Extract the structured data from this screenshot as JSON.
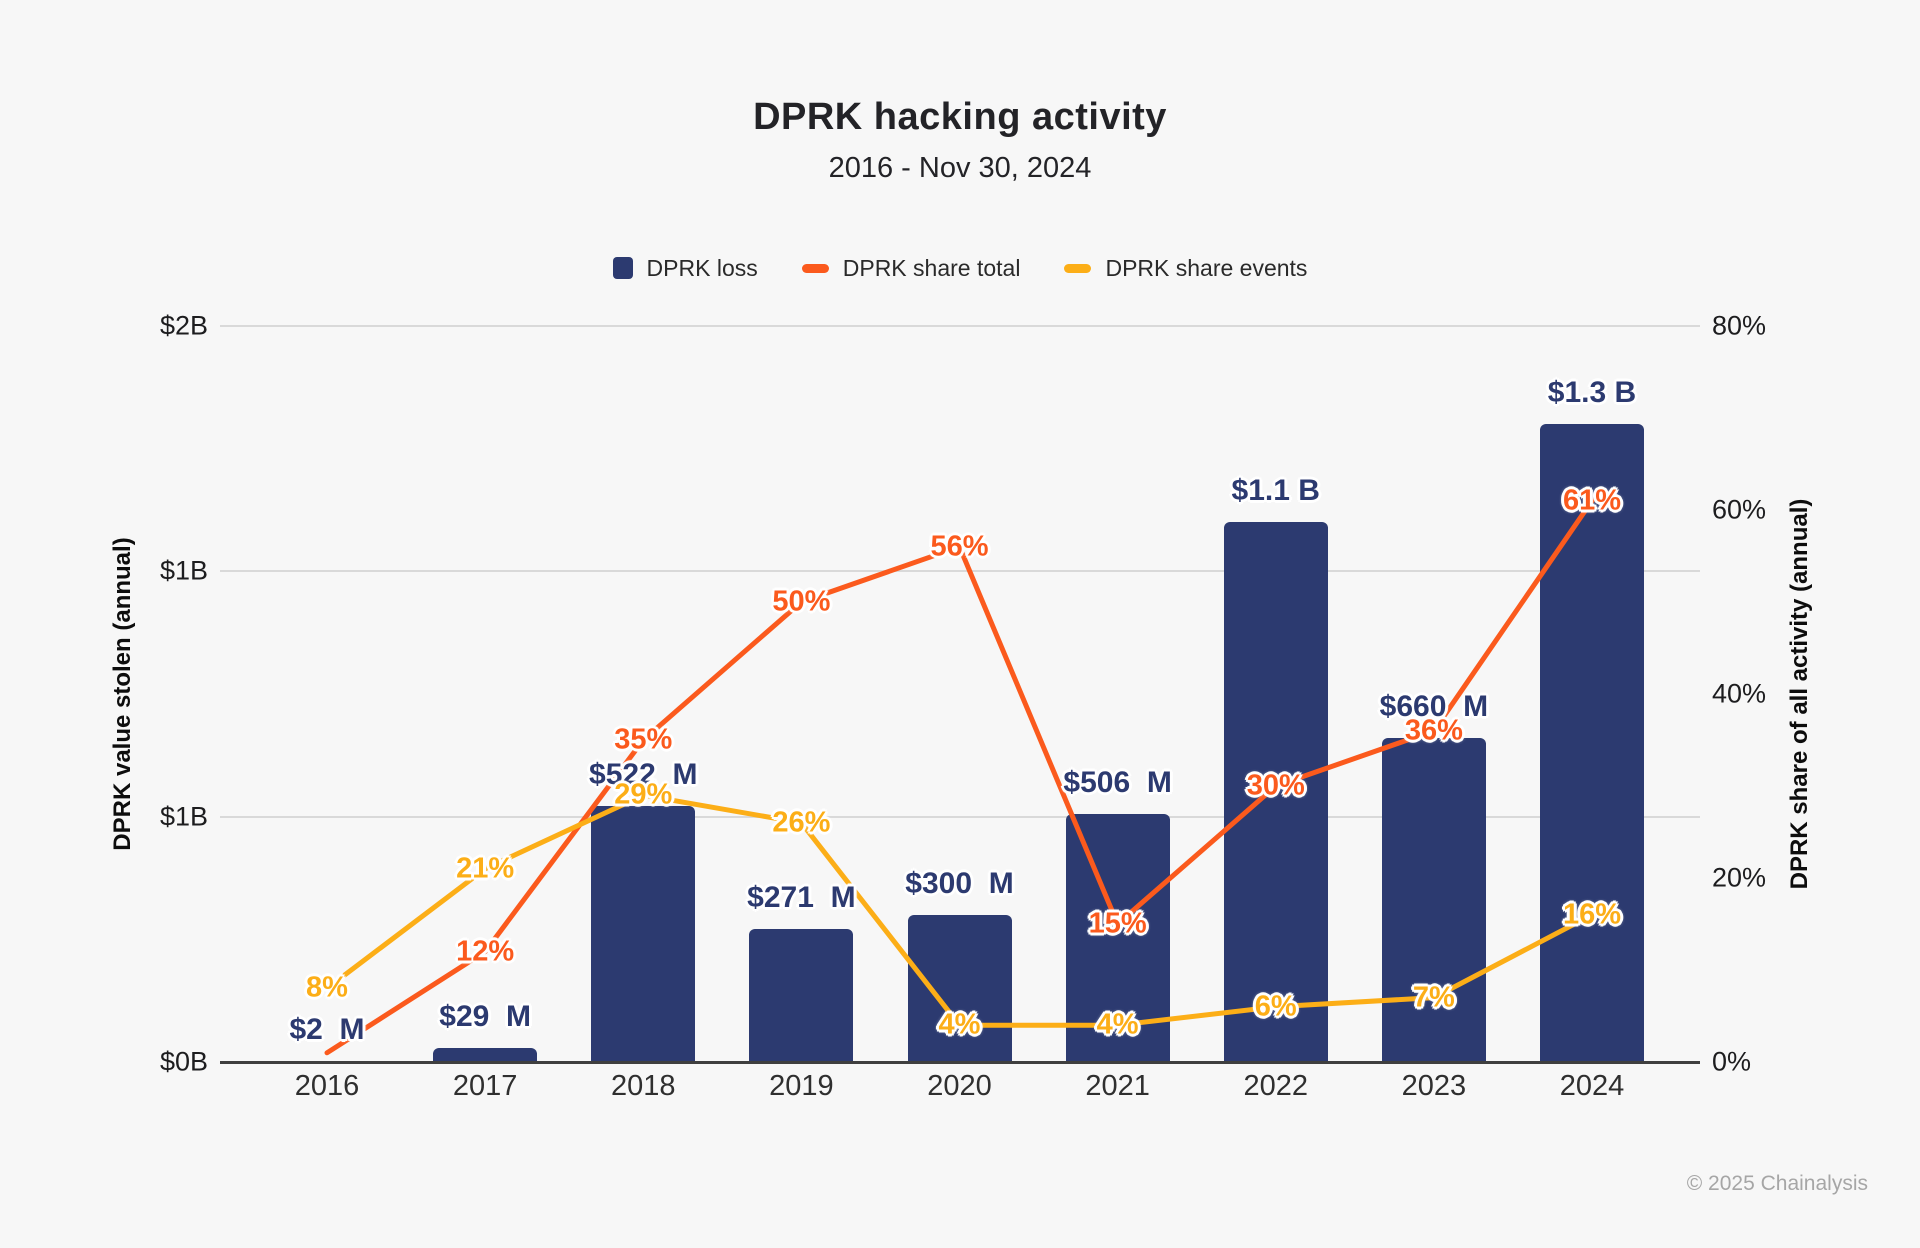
{
  "header": {
    "title": "DPRK hacking activity",
    "subtitle": "2016 - Nov 30, 2024"
  },
  "legend": {
    "items": [
      {
        "label": "DPRK loss",
        "swatch": "square",
        "color": "#2c3a70"
      },
      {
        "label": "DPRK share total",
        "swatch": "dash",
        "color": "#fb5a1d"
      },
      {
        "label": "DPRK share events",
        "swatch": "dash",
        "color": "#fcae17"
      }
    ]
  },
  "footer": {
    "copyright": "© 2025 Chainalysis"
  },
  "colors": {
    "background": "#f7f7f7",
    "bar": "#2c3a70",
    "orange_line": "#fb5a1d",
    "yellow_line": "#fcae17",
    "gridline": "#d9d9d9",
    "axis_line": "#3f3f3f",
    "tick_text": "#1d1d1f",
    "footer_text": "#a6a6a6"
  },
  "chart_data": {
    "type": "bar",
    "subtype": "combo bar + two lines, dual axis",
    "title": "DPRK hacking activity",
    "subtitle": "2016 - Nov 30, 2024",
    "categories": [
      "2016",
      "2017",
      "2018",
      "2019",
      "2020",
      "2021",
      "2022",
      "2023",
      "2024"
    ],
    "legend_position": "top",
    "left_axis": {
      "label": "DPRK value stolen (annual)",
      "tick_labels": [
        "$0B",
        "$1B",
        "$1B",
        "$2B"
      ],
      "tick_values_billions": [
        0,
        0.5,
        1.0,
        1.5
      ],
      "range_billions": [
        0,
        1.5
      ],
      "grid": true
    },
    "right_axis": {
      "label": "DPRK share of all activity (annual)",
      "tick_labels": [
        "0%",
        "20%",
        "40%",
        "60%",
        "80%"
      ],
      "tick_values_percent": [
        0,
        20,
        40,
        60,
        80
      ],
      "range_percent": [
        0,
        80
      ],
      "grid": false
    },
    "series": [
      {
        "name": "DPRK loss",
        "type": "bar",
        "axis": "left",
        "color": "#2c3a70",
        "values_millions_usd": [
          2,
          29,
          522,
          271,
          300,
          506,
          1100,
          660,
          1300
        ],
        "point_labels": [
          "$2  M",
          "$29  M",
          "$522  M",
          "$271  M",
          "$300  M",
          "$506  M",
          "$1.1 B",
          "$660  M",
          "$1.3 B"
        ]
      },
      {
        "name": "DPRK share total",
        "type": "line",
        "axis": "right",
        "color": "#fb5a1d",
        "values_percent": [
          1,
          12,
          35,
          50,
          56,
          15,
          30,
          36,
          61
        ],
        "point_labels": [
          "",
          "12%",
          "35%",
          "50%",
          "56%",
          "15%",
          "30%",
          "36%",
          "61%"
        ]
      },
      {
        "name": "DPRK share events",
        "type": "line",
        "axis": "right",
        "color": "#fcae17",
        "values_percent": [
          8,
          21,
          29,
          26,
          4,
          4,
          6,
          7,
          16
        ],
        "point_labels": [
          "8%",
          "21%",
          "29%",
          "26%",
          "4%",
          "4%",
          "6%",
          "7%",
          "16%"
        ]
      }
    ]
  }
}
